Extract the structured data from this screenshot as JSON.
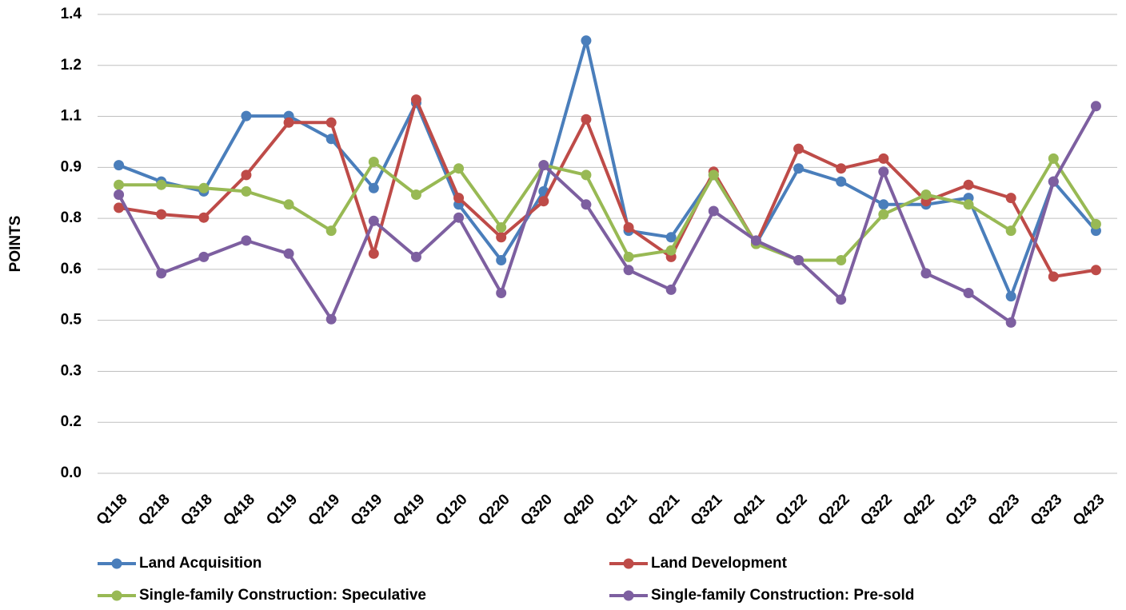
{
  "chart_data": {
    "type": "line",
    "y_label": "POINTS",
    "categories": [
      "Q118",
      "Q218",
      "Q318",
      "Q418",
      "Q119",
      "Q219",
      "Q319",
      "Q419",
      "Q120",
      "Q220",
      "Q320",
      "Q420",
      "Q121",
      "Q221",
      "Q321",
      "Q421",
      "Q122",
      "Q222",
      "Q322",
      "Q422",
      "Q123",
      "Q223",
      "Q323",
      "Q423"
    ],
    "ylim": [
      0,
      1.4
    ],
    "yticks": [
      {
        "value": 0,
        "label": "0.0"
      },
      {
        "value": 0.1556,
        "label": "0.2"
      },
      {
        "value": 0.3111,
        "label": "0.3"
      },
      {
        "value": 0.4667,
        "label": "0.5"
      },
      {
        "value": 0.6222,
        "label": "0.6"
      },
      {
        "value": 0.7778,
        "label": "0.8"
      },
      {
        "value": 0.9333,
        "label": "0.9"
      },
      {
        "value": 1.0889,
        "label": "1.1"
      },
      {
        "value": 1.2444,
        "label": "1.2"
      },
      {
        "value": 1.4,
        "label": "1.4"
      }
    ],
    "grid": true,
    "series": [
      {
        "name": "Land Acquisition",
        "color": "#4a7ebb",
        "values": [
          0.94,
          0.89,
          0.86,
          1.09,
          1.09,
          1.02,
          0.87,
          1.13,
          0.82,
          0.65,
          0.86,
          1.32,
          0.74,
          0.72,
          0.91,
          0.7,
          0.93,
          0.89,
          0.82,
          0.82,
          0.84,
          0.54,
          0.89,
          0.74
        ]
      },
      {
        "name": "Land Development",
        "color": "#be4b48",
        "values": [
          0.81,
          0.79,
          0.78,
          0.91,
          1.07,
          1.07,
          0.67,
          1.14,
          0.84,
          0.72,
          0.83,
          1.08,
          0.75,
          0.66,
          0.92,
          0.7,
          0.99,
          0.93,
          0.96,
          0.83,
          0.88,
          0.84,
          0.6,
          0.62
        ]
      },
      {
        "name": "Single-family Construction: Speculative",
        "color": "#98b954",
        "values": [
          0.88,
          0.88,
          0.87,
          0.86,
          0.82,
          0.74,
          0.95,
          0.85,
          0.93,
          0.75,
          0.94,
          0.91,
          0.66,
          0.68,
          0.91,
          0.7,
          0.65,
          0.65,
          0.79,
          0.85,
          0.82,
          0.74,
          0.96,
          0.76
        ]
      },
      {
        "name": "Single-family Construction: Pre-sold",
        "color": "#7d5fa0",
        "values": [
          0.85,
          0.61,
          0.66,
          0.71,
          0.67,
          0.47,
          0.77,
          0.66,
          0.78,
          0.55,
          0.94,
          0.82,
          0.62,
          0.56,
          0.8,
          0.71,
          0.65,
          0.53,
          0.92,
          0.61,
          0.55,
          0.46,
          0.89,
          1.12
        ]
      }
    ]
  }
}
